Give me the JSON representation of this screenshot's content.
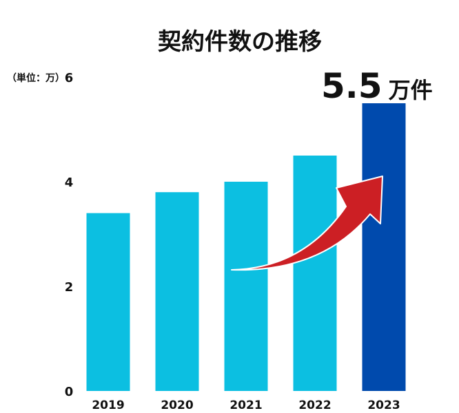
{
  "chart_data": {
    "type": "bar",
    "title": "契約件数の推移",
    "unit_label": "（単位：万）",
    "categories": [
      "2019",
      "2020",
      "2021",
      "2022",
      "2023"
    ],
    "values": [
      3.4,
      3.8,
      4.0,
      4.5,
      5.5
    ],
    "ylim": [
      0,
      6
    ],
    "yticks": [
      0,
      2,
      4,
      6
    ],
    "grid": false,
    "highlight_index": 4,
    "colors": {
      "bar": "#0cbfe1",
      "highlight_bar": "#004aad",
      "arrow": "#cc1f24"
    },
    "callout": {
      "value": "5.5",
      "unit": "万件"
    }
  }
}
